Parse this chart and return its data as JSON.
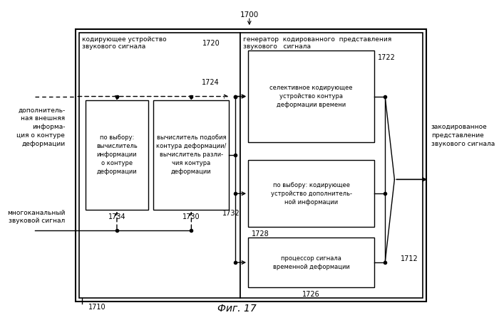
{
  "fig_label": "Фиг. 17",
  "background": "#ffffff",
  "text_left_top": "дополнитель-\nная внешняя\nинформа-\nция о контуре\nдеформации",
  "text_left_bottom": "многоканальный\nзвуковой сигнал",
  "text_right": "закодированное\nпредставление\nзвукового сигнала",
  "label_1700": "1700",
  "label_1710": "1710",
  "label_1712": "1712",
  "label_1720": "1720",
  "label_1722": "1722",
  "label_1724": "1724",
  "label_1726": "1726",
  "label_1728": "1728",
  "label_1730": "1730",
  "label_1732": "1732",
  "label_1734": "1734",
  "text_outer_left": "кодирующее устройство\nзвукового сигнала",
  "text_outer_right": "генератор  кодированного  представления\nзвукового   сигнала",
  "text_1734": "по выбору:\nвычислитель\nинформации\nо контуре\nдеформации",
  "text_1730": "вычислитель подобия\nконтура деформации/\nвычислитель разли-\nчия контура\nдеформации",
  "text_1722": "селективное кодирующее\nустройство контура\nдеформации времени",
  "text_1728": "по выбору: кодирующее\nустройство дополнитель-\nной информации",
  "text_1726": "процессор сигнала\nвременной деформации"
}
